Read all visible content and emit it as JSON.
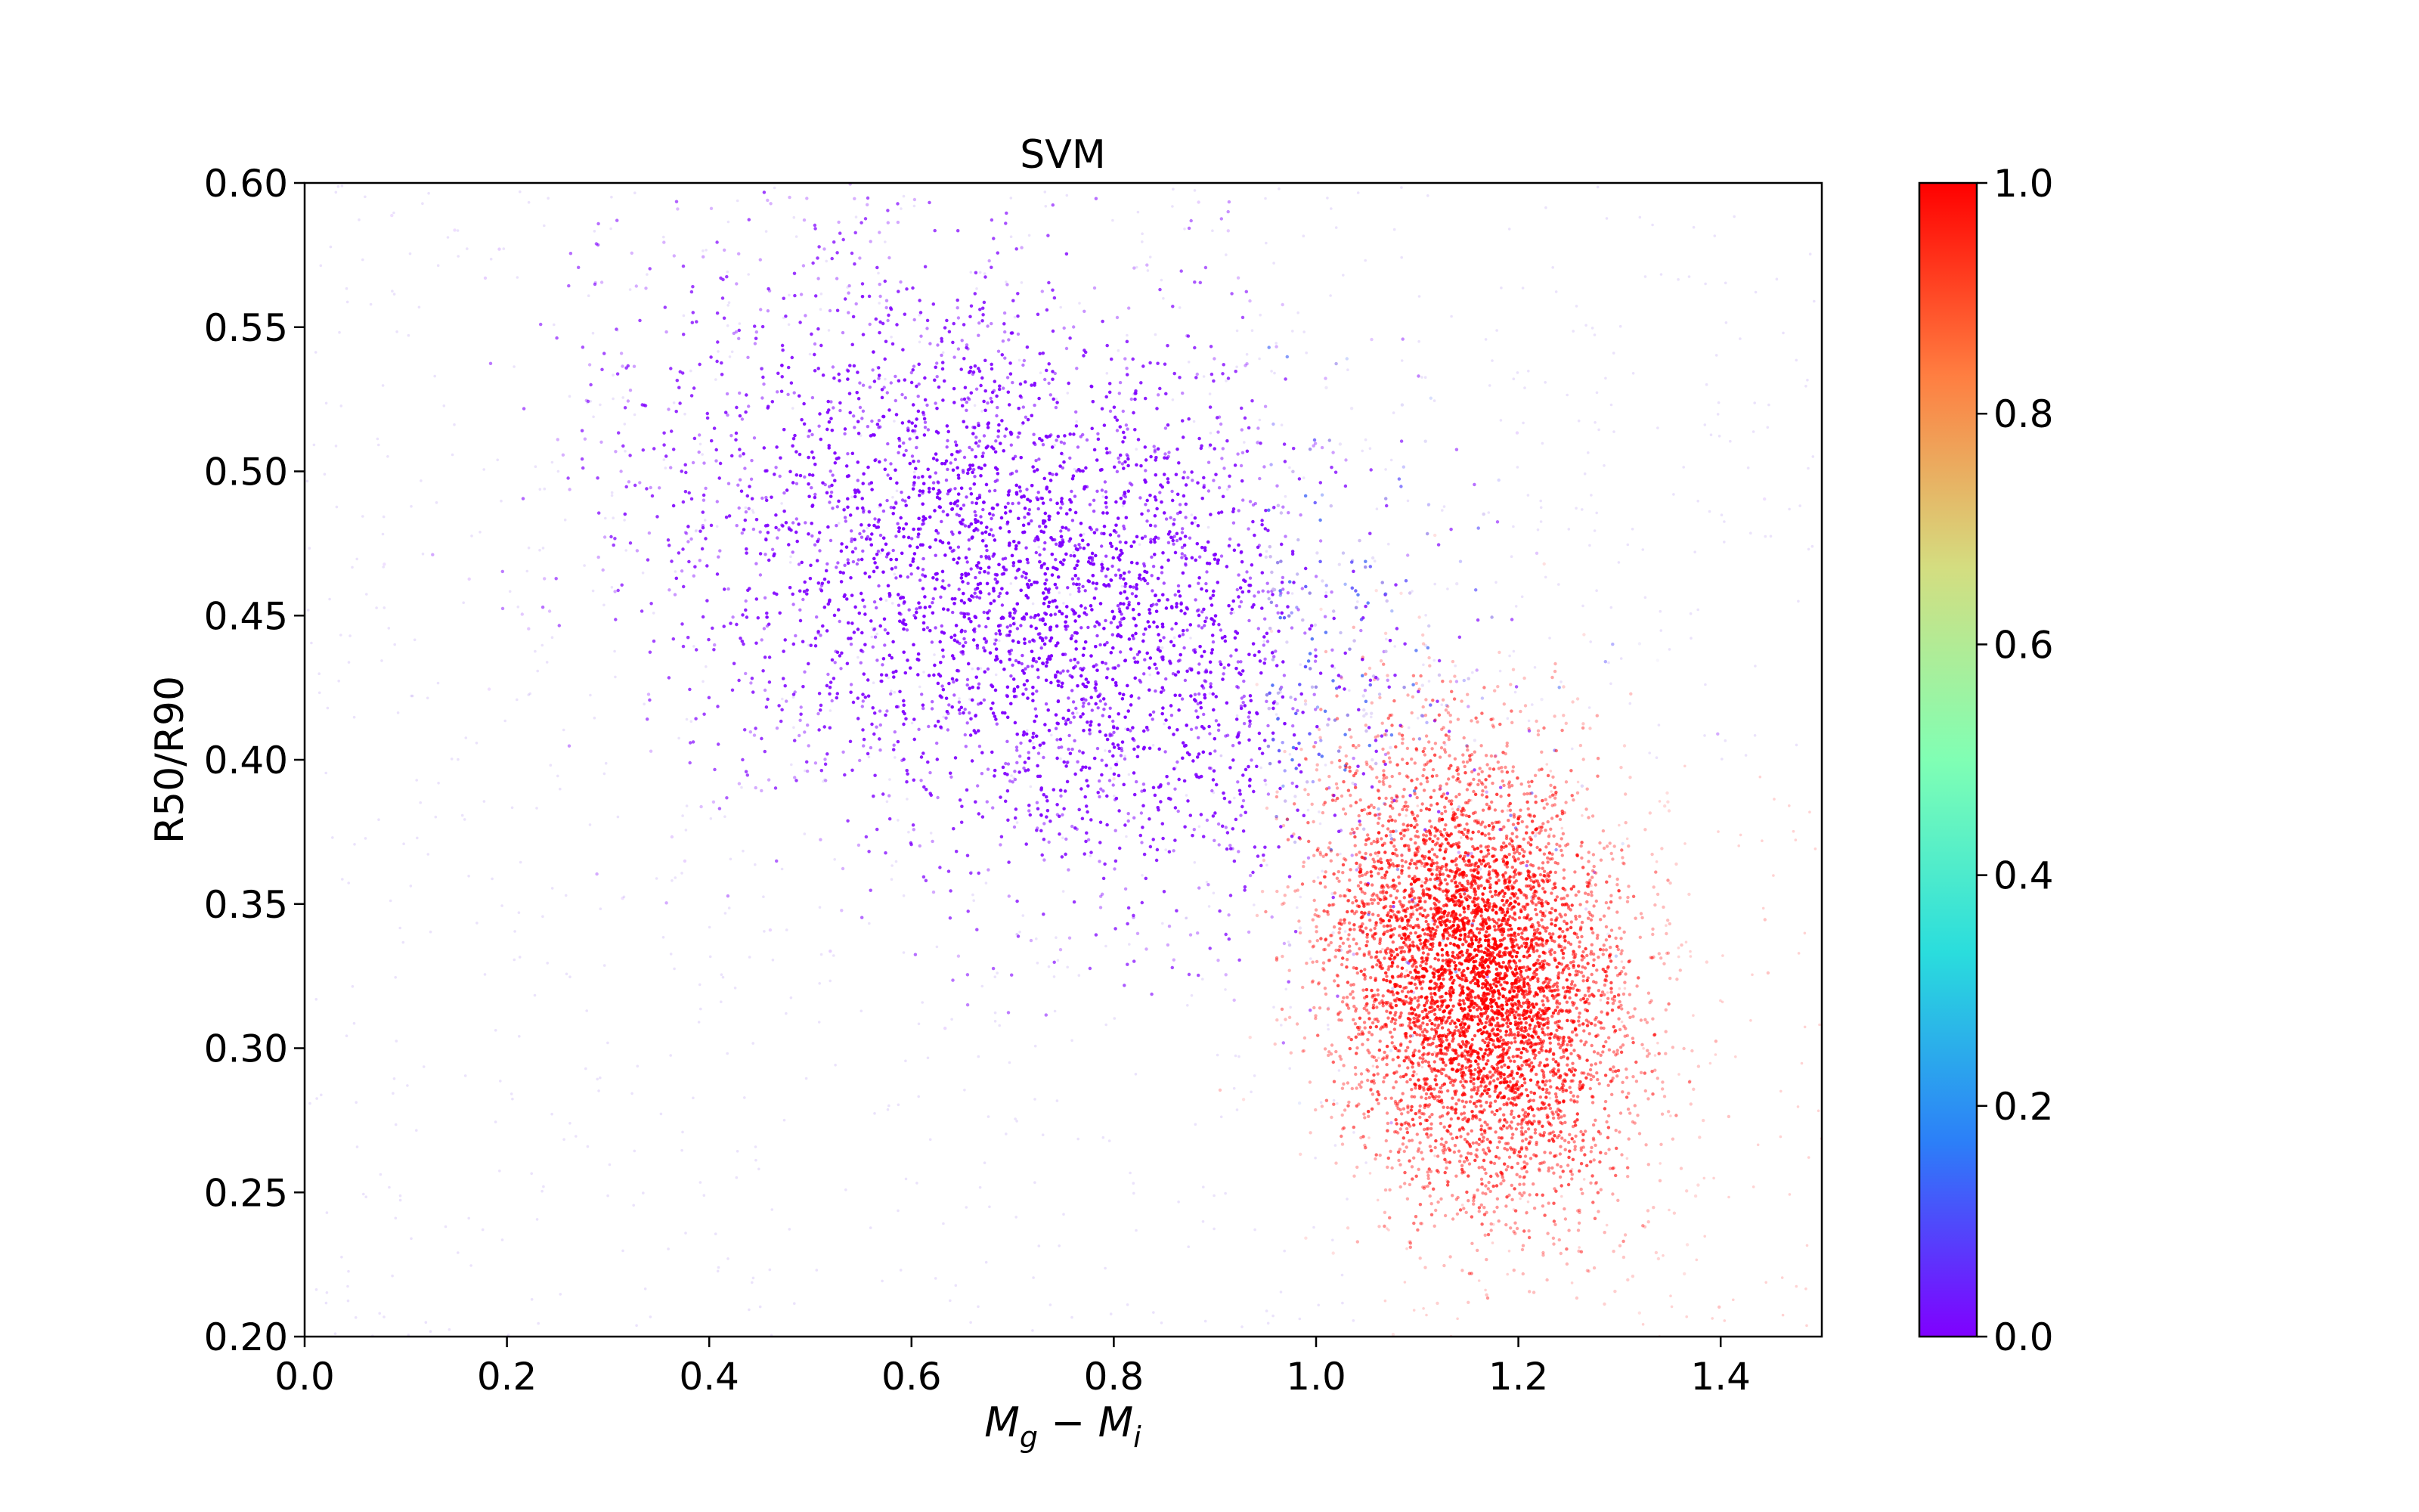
{
  "chart_data": {
    "type": "scatter",
    "title": "SVM",
    "xlabel": "M_g − M_i",
    "xlabel_parts": {
      "main1": "M",
      "sub1": "g",
      "op": " − ",
      "main2": "M",
      "sub2": "i"
    },
    "ylabel": "R50/R90",
    "xlim": [
      0.0,
      1.5
    ],
    "ylim": [
      0.2,
      0.6
    ],
    "xticks": [
      0.0,
      0.2,
      0.4,
      0.6,
      0.8,
      1.0,
      1.2,
      1.4
    ],
    "xtick_labels": [
      "0.0",
      "0.2",
      "0.4",
      "0.6",
      "0.8",
      "1.0",
      "1.2",
      "1.4"
    ],
    "yticks": [
      0.2,
      0.25,
      0.3,
      0.35,
      0.4,
      0.45,
      0.5,
      0.55,
      0.6
    ],
    "ytick_labels": [
      "0.20",
      "0.25",
      "0.30",
      "0.35",
      "0.40",
      "0.45",
      "0.50",
      "0.55",
      "0.60"
    ],
    "grid": false,
    "legend": "none",
    "colormap": "rainbow",
    "colorbar": {
      "range": [
        0.0,
        1.0
      ],
      "ticks": [
        0.0,
        0.2,
        0.4,
        0.6,
        0.8,
        1.0
      ],
      "tick_labels": [
        "0.0",
        "0.2",
        "0.4",
        "0.6",
        "0.8",
        "1.0"
      ],
      "colors": [
        "#8000ff",
        "#2c7ef8",
        "#2adddd",
        "#80ffb4",
        "#d4dd80",
        "#ff7e41",
        "#ff0000"
      ]
    },
    "series": [
      {
        "description_color_value": 0.0,
        "color": "#8000ff",
        "center": [
          0.72,
          0.46
        ],
        "spread": [
          0.19,
          0.055
        ],
        "correlation": -0.35
      },
      {
        "description_color_value": 1.0,
        "color": "#ff0000",
        "center": [
          1.16,
          0.325
        ],
        "spread": [
          0.075,
          0.04
        ],
        "correlation": -0.2
      }
    ]
  }
}
